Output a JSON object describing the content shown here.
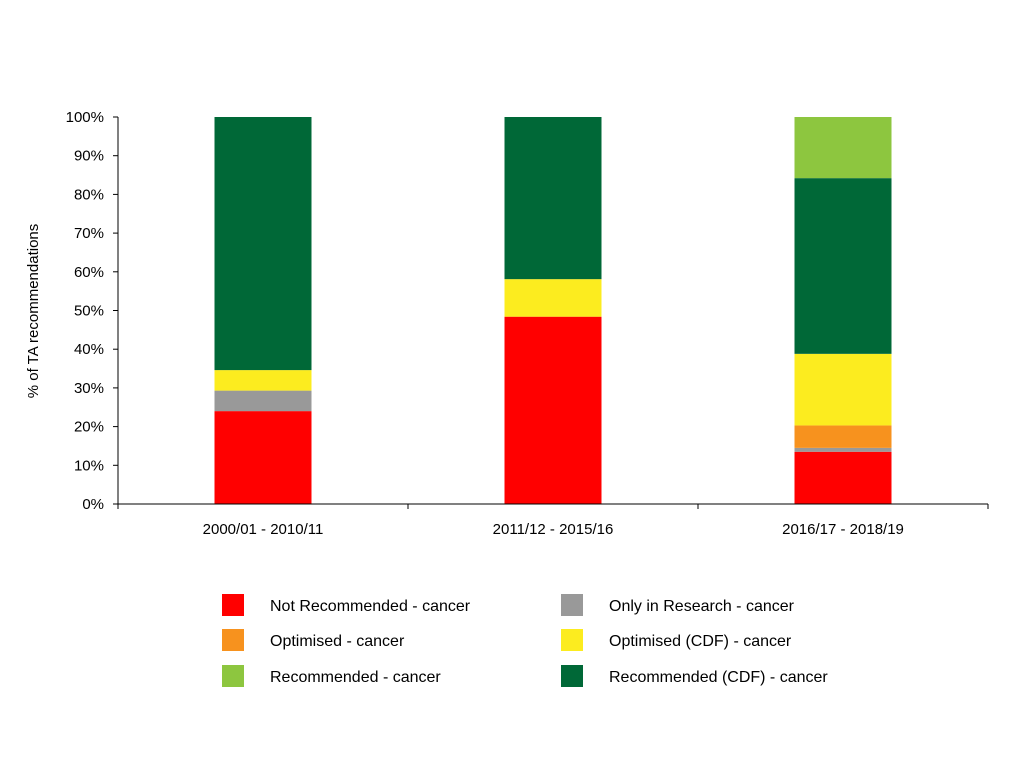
{
  "chart_data": {
    "type": "bar",
    "stacked": true,
    "title": "",
    "xlabel": "",
    "ylabel": "% of TA recommendations",
    "ylim": [
      0,
      100
    ],
    "yticks": [
      "0%",
      "10%",
      "20%",
      "30%",
      "40%",
      "50%",
      "60%",
      "70%",
      "80%",
      "90%",
      "100%"
    ],
    "categories": [
      "2000/01 - 2010/11",
      "2011/12 - 2015/16",
      "2016/17 - 2018/19"
    ],
    "series": [
      {
        "name": "Not Recommended - cancer",
        "color": "#ff0000",
        "values": [
          24,
          48.4,
          13.5
        ]
      },
      {
        "name": "Only in Research - cancer",
        "color": "#999999",
        "values": [
          5.3,
          0,
          1
        ]
      },
      {
        "name": "Optimised - cancer",
        "color": "#f7921e",
        "values": [
          0,
          0,
          5.8
        ]
      },
      {
        "name": "Optimised (CDF) - cancer",
        "color": "#fcec1f",
        "values": [
          5.3,
          9.7,
          18.5
        ]
      },
      {
        "name": "Recommended (CDF) - cancer",
        "color": "#006837",
        "values": [
          65.4,
          41.9,
          45.4
        ]
      },
      {
        "name": "Recommended  - cancer",
        "color": "#8dc63f",
        "values": [
          0,
          0,
          15.8
        ]
      }
    ],
    "legend_position": "bottom",
    "legend_order": [
      0,
      1,
      2,
      3,
      5,
      4
    ],
    "grid": false
  }
}
